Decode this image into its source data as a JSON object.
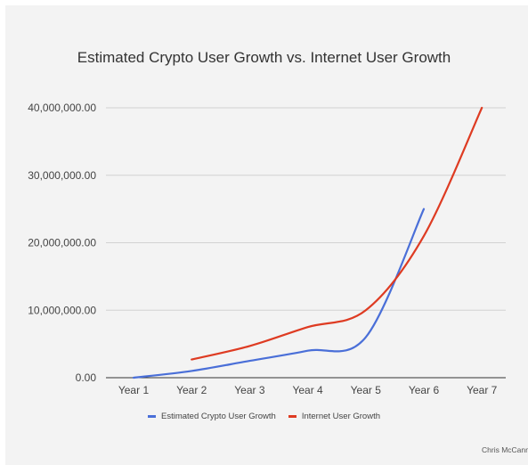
{
  "chart_data": {
    "type": "line",
    "title": "Estimated Crypto User Growth vs. Internet User Growth",
    "xlabel": "",
    "ylabel": "",
    "categories": [
      "Year 1",
      "Year 2",
      "Year 3",
      "Year 4",
      "Year 5",
      "Year 6",
      "Year 7"
    ],
    "ylim": [
      0,
      40000000
    ],
    "yticks": [
      0,
      10000000,
      20000000,
      30000000,
      40000000
    ],
    "ytick_labels": [
      "0.00",
      "10,000,000.00",
      "20,000,000.00",
      "30,000,000.00",
      "40,000,000.00"
    ],
    "grid": true,
    "legend_position": "bottom",
    "series": [
      {
        "name": "Estimated Crypto User Growth",
        "color": "#4a6fd8",
        "values": [
          0,
          1000000,
          2500000,
          4000000,
          6000000,
          25000000,
          null
        ]
      },
      {
        "name": "Internet User Growth",
        "color": "#de3b22",
        "values": [
          null,
          2700000,
          4700000,
          7500000,
          10000000,
          21000000,
          40000000
        ]
      }
    ],
    "credit": "Chris McCann"
  }
}
